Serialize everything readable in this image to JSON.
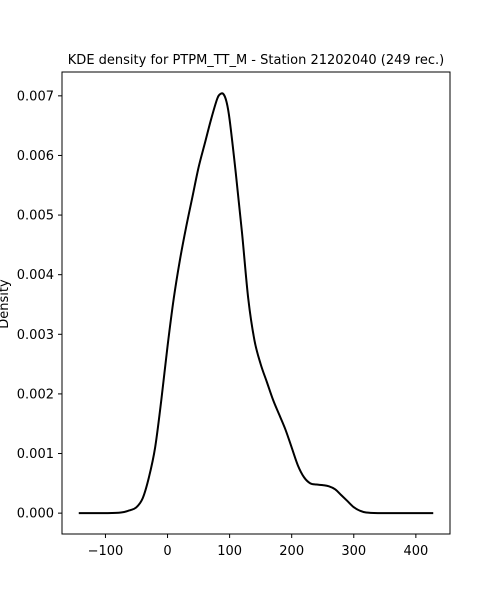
{
  "chart_data": {
    "type": "line",
    "title": "KDE density for PTPM_TT_M - Station 21202040 (249 rec.)",
    "xlabel": "",
    "ylabel": "Density",
    "xlim": [
      -170,
      455
    ],
    "ylim": [
      -0.00035,
      0.0074
    ],
    "xticks": [
      -100,
      0,
      100,
      200,
      300,
      400
    ],
    "xtick_labels": [
      "−100",
      "0",
      "100",
      "200",
      "300",
      "400"
    ],
    "yticks": [
      0,
      0.001,
      0.002,
      0.003,
      0.004,
      0.005,
      0.006,
      0.007
    ],
    "ytick_labels": [
      "0.000",
      "0.001",
      "0.002",
      "0.003",
      "0.004",
      "0.005",
      "0.006",
      "0.007"
    ],
    "grid": false,
    "line_color": "#000000",
    "series": [
      {
        "x": [
          -143,
          -100,
          -75,
          -60,
          -50,
          -40,
          -30,
          -20,
          -10,
          0,
          10,
          20,
          30,
          40,
          50,
          60,
          70,
          80,
          85,
          90,
          95,
          100,
          110,
          120,
          130,
          140,
          150,
          160,
          170,
          180,
          190,
          200,
          210,
          220,
          230,
          240,
          250,
          260,
          270,
          280,
          290,
          300,
          310,
          320,
          340,
          360,
          400,
          428
        ],
        "y": [
          0,
          0,
          1e-05,
          5e-05,
          0.0001,
          0.00025,
          0.0006,
          0.0011,
          0.0019,
          0.0028,
          0.0036,
          0.00425,
          0.0048,
          0.0053,
          0.0058,
          0.0062,
          0.0066,
          0.00695,
          0.00703,
          0.00703,
          0.0069,
          0.0066,
          0.0057,
          0.0047,
          0.0036,
          0.0029,
          0.0025,
          0.0022,
          0.0019,
          0.00165,
          0.0014,
          0.0011,
          0.0008,
          0.0006,
          0.0005,
          0.00048,
          0.00047,
          0.00045,
          0.0004,
          0.0003,
          0.0002,
          0.0001,
          4e-05,
          1e-05,
          0,
          0,
          0,
          0
        ]
      }
    ]
  }
}
